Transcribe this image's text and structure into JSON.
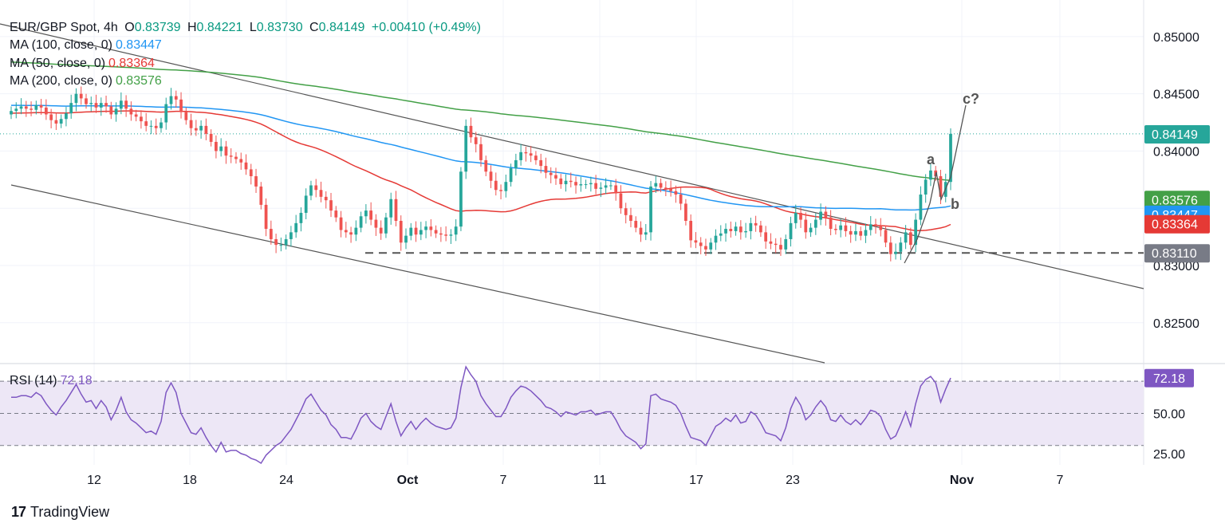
{
  "header": {
    "symbol": "EUR/GBP Spot, 4h",
    "o_label": "O",
    "o": "0.83739",
    "h_label": "H",
    "h": "0.84221",
    "l_label": "L",
    "l": "0.83730",
    "c_label": "C",
    "c": "0.84149",
    "change": "+0.00410 (+0.49%)"
  },
  "legend": [
    {
      "label": "MA (100, close, 0)",
      "value": "0.83447",
      "color": "#2196f3"
    },
    {
      "label": "MA (50, close, 0)",
      "value": "0.83364",
      "color": "#e53935"
    },
    {
      "label": "MA (200, close, 0)",
      "value": "0.83576",
      "color": "#43a047"
    }
  ],
  "rsi_legend": {
    "label": "RSI (14)",
    "value": "72.18",
    "color": "#7e57c2"
  },
  "brand": {
    "name": "TradingView",
    "mark": "17"
  },
  "colors": {
    "up": "#26a69a",
    "down": "#ef5350",
    "ma100": "#2196f3",
    "ma50": "#e53935",
    "ma200": "#43a047",
    "rsi": "#7e57c2",
    "trend": "#555555"
  },
  "chart_data": [
    {
      "type": "candlestick",
      "title": "EUR/GBP Spot, 4h",
      "ylim": [
        0.8215,
        0.8525
      ],
      "y_ticks": [
        "0.85000",
        "0.84500",
        "0.84000",
        "0.83500",
        "0.83000",
        "0.82500"
      ],
      "x_ticks": [
        "12",
        "18",
        "24",
        "Oct",
        "7",
        "11",
        "17",
        "23",
        "Nov",
        "7"
      ],
      "price_tags": [
        {
          "value": "0.84149",
          "color": "#26a69a"
        },
        {
          "value": "0.83576",
          "color": "#43a047"
        },
        {
          "value": "0.83447",
          "color": "#2196f3"
        },
        {
          "value": "0.83364",
          "color": "#e53935"
        },
        {
          "value": "0.83110",
          "color": "#787b86"
        }
      ],
      "support_level": 0.8311,
      "annotations": [
        "a",
        "b",
        "c?"
      ],
      "closes": [
        0.8435,
        0.8437,
        0.8439,
        0.8437,
        0.8436,
        0.844,
        0.8438,
        0.8432,
        0.8427,
        0.8424,
        0.8428,
        0.8433,
        0.8442,
        0.845,
        0.8446,
        0.8441,
        0.8442,
        0.8438,
        0.8442,
        0.8439,
        0.8432,
        0.8437,
        0.8444,
        0.8437,
        0.8432,
        0.843,
        0.8426,
        0.8422,
        0.8422,
        0.842,
        0.8425,
        0.8441,
        0.8448,
        0.8445,
        0.8434,
        0.8427,
        0.842,
        0.8418,
        0.8422,
        0.8415,
        0.8408,
        0.84,
        0.8404,
        0.8396,
        0.8395,
        0.8393,
        0.839,
        0.8384,
        0.8378,
        0.8369,
        0.8353,
        0.8332,
        0.8323,
        0.8318,
        0.8318,
        0.8323,
        0.8329,
        0.8337,
        0.8346,
        0.8361,
        0.837,
        0.8366,
        0.836,
        0.8357,
        0.8348,
        0.8342,
        0.8331,
        0.8329,
        0.8327,
        0.8333,
        0.8343,
        0.8348,
        0.834,
        0.8333,
        0.8328,
        0.8342,
        0.8358,
        0.8339,
        0.832,
        0.8326,
        0.8333,
        0.8327,
        0.8331,
        0.8334,
        0.8331,
        0.8328,
        0.8327,
        0.8326,
        0.8327,
        0.8334,
        0.8382,
        0.8422,
        0.8412,
        0.8406,
        0.8392,
        0.8382,
        0.8374,
        0.8366,
        0.8365,
        0.8373,
        0.8385,
        0.8392,
        0.8399,
        0.8398,
        0.8396,
        0.8392,
        0.8387,
        0.8381,
        0.8379,
        0.8376,
        0.8371,
        0.8374,
        0.8373,
        0.837,
        0.8371,
        0.8371,
        0.8372,
        0.8367,
        0.8368,
        0.837,
        0.837,
        0.8363,
        0.835,
        0.8344,
        0.8339,
        0.8333,
        0.8327,
        0.8329,
        0.8369,
        0.8372,
        0.8368,
        0.8367,
        0.8365,
        0.8362,
        0.8354,
        0.8339,
        0.8322,
        0.832,
        0.8317,
        0.8314,
        0.832,
        0.8326,
        0.8328,
        0.8332,
        0.833,
        0.8334,
        0.8329,
        0.833,
        0.8337,
        0.8335,
        0.8329,
        0.8321,
        0.8319,
        0.8318,
        0.8314,
        0.8323,
        0.8337,
        0.8346,
        0.834,
        0.8329,
        0.8333,
        0.834,
        0.8347,
        0.8342,
        0.8332,
        0.8331,
        0.8335,
        0.833,
        0.8327,
        0.833,
        0.8326,
        0.8331,
        0.8336,
        0.8335,
        0.8331,
        0.832,
        0.831,
        0.8312,
        0.832,
        0.8329,
        0.8318,
        0.834,
        0.8362,
        0.8375,
        0.8383,
        0.8378,
        0.836,
        0.8373,
        0.8415
      ],
      "rsi": {
        "ylim": [
          18,
          80
        ],
        "y_ticks": [
          "72.18",
          "50.00",
          "25.00"
        ],
        "levels": [
          70,
          50,
          30
        ],
        "values": [
          60,
          60,
          61,
          61,
          60,
          63,
          61,
          56,
          52,
          49,
          54,
          58,
          63,
          68,
          62,
          57,
          58,
          53,
          58,
          54,
          46,
          52,
          60,
          51,
          46,
          44,
          41,
          38,
          39,
          37,
          45,
          63,
          69,
          63,
          50,
          44,
          38,
          37,
          41,
          35,
          30,
          26,
          32,
          26,
          27,
          27,
          25,
          24,
          22,
          21,
          19,
          24,
          27,
          30,
          32,
          36,
          40,
          46,
          52,
          59,
          62,
          57,
          52,
          49,
          43,
          40,
          35,
          35,
          34,
          40,
          47,
          50,
          45,
          42,
          40,
          48,
          56,
          45,
          36,
          41,
          45,
          40,
          44,
          47,
          44,
          42,
          41,
          40,
          41,
          47,
          66,
          79,
          74,
          70,
          61,
          56,
          52,
          48,
          48,
          53,
          60,
          64,
          67,
          66,
          64,
          61,
          58,
          54,
          53,
          51,
          48,
          51,
          50,
          49,
          51,
          51,
          52,
          49,
          50,
          51,
          51,
          46,
          40,
          36,
          34,
          32,
          28,
          31,
          61,
          62,
          59,
          58,
          57,
          55,
          50,
          42,
          35,
          34,
          33,
          30,
          36,
          42,
          44,
          47,
          45,
          49,
          44,
          45,
          51,
          49,
          44,
          38,
          37,
          36,
          33,
          41,
          53,
          60,
          55,
          46,
          49,
          54,
          58,
          54,
          46,
          45,
          49,
          45,
          43,
          46,
          43,
          47,
          52,
          51,
          48,
          40,
          34,
          36,
          43,
          51,
          42,
          56,
          67,
          71,
          73,
          69,
          57,
          65,
          72
        ]
      }
    }
  ]
}
